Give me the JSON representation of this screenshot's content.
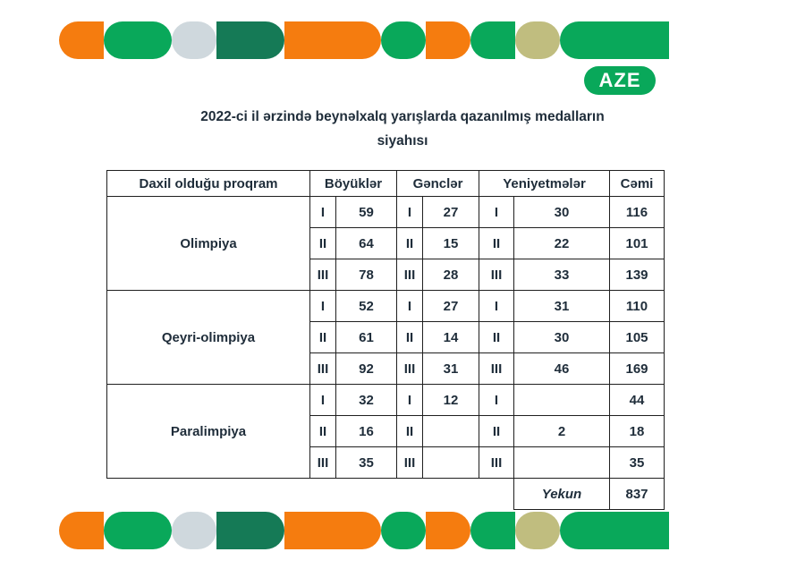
{
  "badge": "AZE",
  "title_line1": "2022-ci il ərzində beynəlxalq yarışlarda qazanılmış medalların",
  "title_line2": "siyahısı",
  "colors": {
    "orange": "#f57c0f",
    "green": "#09a85a",
    "dark_green": "#157a56",
    "grey": "#cfd8dd",
    "olive": "#c0bd7f"
  },
  "table": {
    "headers": [
      "Daxil olduğu proqram",
      "Böyüklər",
      "Gənclər",
      "Yeniyetmələr",
      "Cəmi"
    ],
    "groups": [
      {
        "program": "Olimpiya",
        "rows": [
          {
            "r1": "I",
            "v1": "59",
            "r2": "I",
            "v2": "27",
            "r3": "I",
            "v3": "30",
            "total": "116"
          },
          {
            "r1": "II",
            "v1": "64",
            "r2": "II",
            "v2": "15",
            "r3": "II",
            "v3": "22",
            "total": "101"
          },
          {
            "r1": "III",
            "v1": "78",
            "r2": "III",
            "v2": "28",
            "r3": "III",
            "v3": "33",
            "total": "139"
          }
        ]
      },
      {
        "program": "Qeyri-olimpiya",
        "rows": [
          {
            "r1": "I",
            "v1": "52",
            "r2": "I",
            "v2": "27",
            "r3": "I",
            "v3": "31",
            "total": "110"
          },
          {
            "r1": "II",
            "v1": "61",
            "r2": "II",
            "v2": "14",
            "r3": "II",
            "v3": "30",
            "total": "105"
          },
          {
            "r1": "III",
            "v1": "92",
            "r2": "III",
            "v2": "31",
            "r3": "III",
            "v3": "46",
            "total": "169"
          }
        ]
      },
      {
        "program": "Paralimpiya",
        "rows": [
          {
            "r1": "I",
            "v1": "32",
            "r2": "I",
            "v2": "12",
            "r3": "I",
            "v3": "",
            "total": "44"
          },
          {
            "r1": "II",
            "v1": "16",
            "r2": "II",
            "v2": "",
            "r3": "II",
            "v3": "2",
            "total": "18"
          },
          {
            "r1": "III",
            "v1": "35",
            "r2": "III",
            "v2": "",
            "r3": "III",
            "v3": "",
            "total": "35"
          }
        ]
      }
    ],
    "footer_label": "Yekun",
    "footer_total": "837"
  }
}
